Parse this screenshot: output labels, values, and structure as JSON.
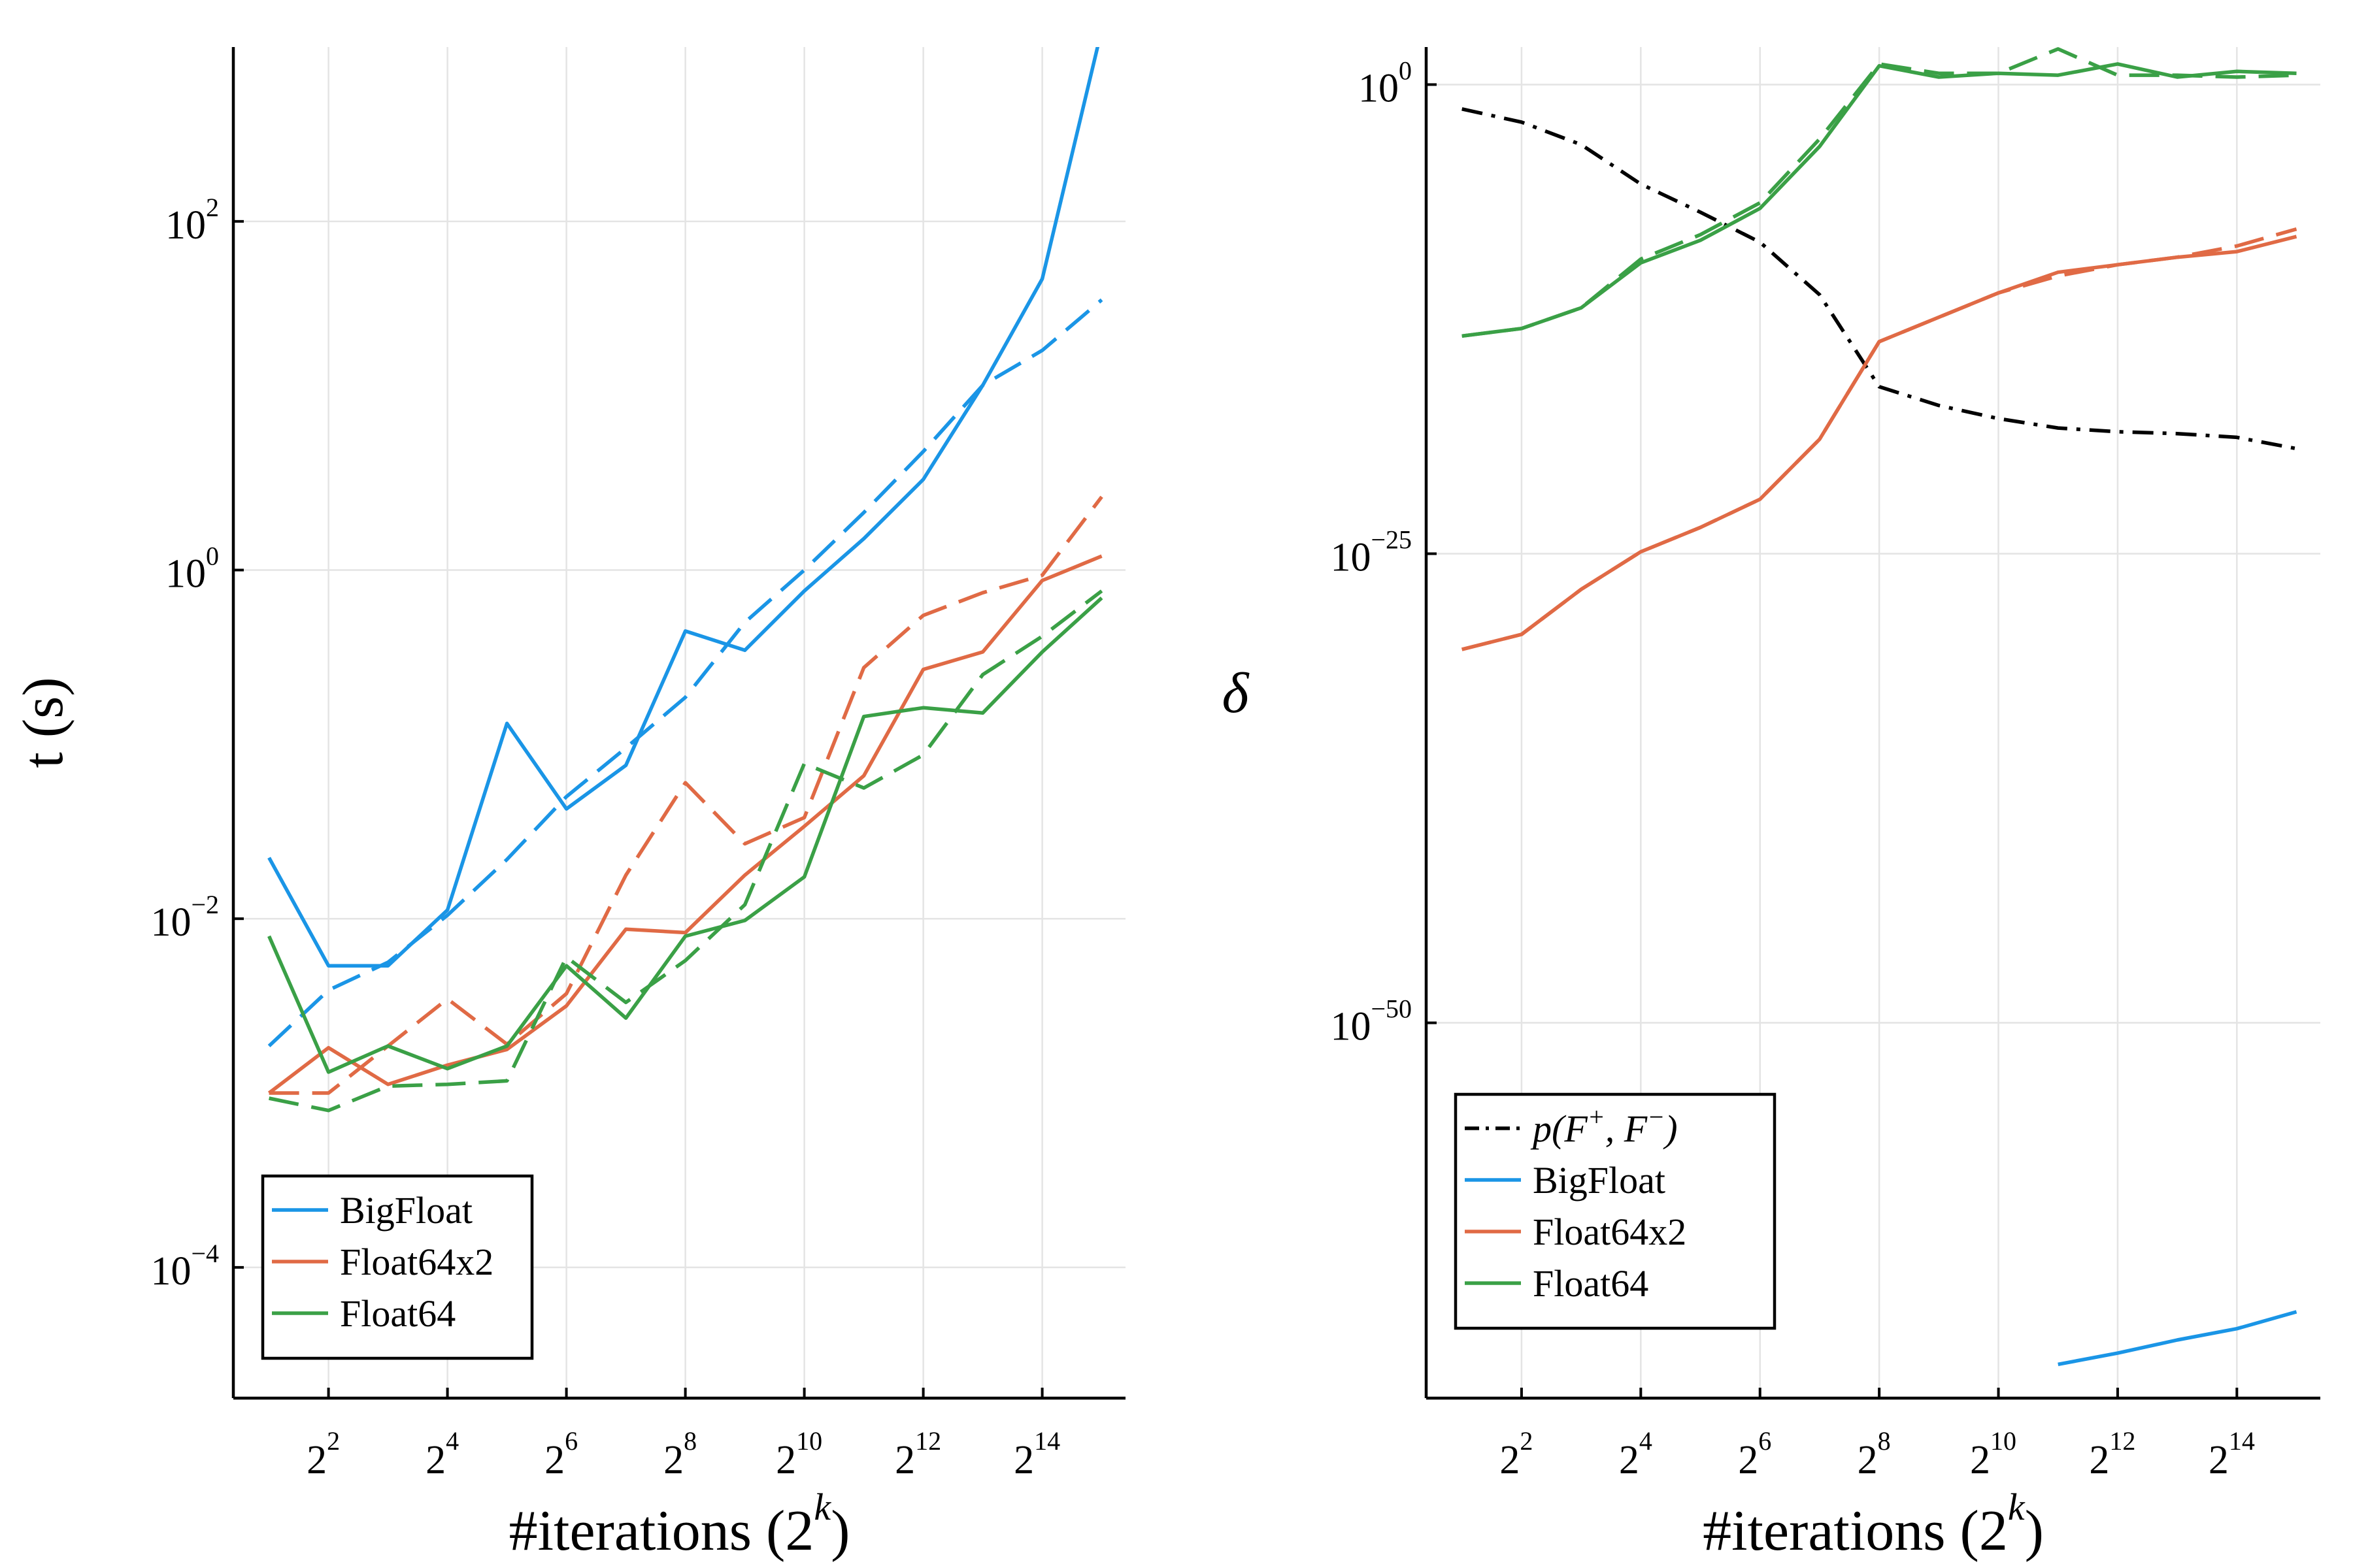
{
  "colors": {
    "BigFloat": "#1a95e6",
    "Float64x2": "#e06a45",
    "Float64": "#3aa046",
    "ratio": "#000000"
  },
  "chart_data": [
    {
      "type": "line",
      "xlabel": "#iterations (2",
      "xlabel_sup": "k",
      "xlabel_close": ")",
      "ylabel": "t (s)",
      "x": [
        1,
        2,
        3,
        4,
        5,
        6,
        7,
        8,
        9,
        10,
        11,
        12,
        13,
        14,
        15
      ],
      "x_ticks": [
        {
          "base": "2",
          "exp": "2",
          "k": 2
        },
        {
          "base": "2",
          "exp": "4",
          "k": 4
        },
        {
          "base": "2",
          "exp": "6",
          "k": 6
        },
        {
          "base": "2",
          "exp": "8",
          "k": 8
        },
        {
          "base": "2",
          "exp": "10",
          "k": 10
        },
        {
          "base": "2",
          "exp": "12",
          "k": 12
        },
        {
          "base": "2",
          "exp": "14",
          "k": 14
        }
      ],
      "y_ticks": [
        {
          "base": "10",
          "exp": "−4",
          "v": -4
        },
        {
          "base": "10",
          "exp": "−2",
          "v": -2
        },
        {
          "base": "10",
          "exp": "0",
          "v": 0
        },
        {
          "base": "10",
          "exp": "2",
          "v": 2
        }
      ],
      "xlim": [
        0.4,
        15.4
      ],
      "ylim_log10": [
        -4.75,
        3.0
      ],
      "scale_y": "log10",
      "grid": true,
      "legend": "bottom-left",
      "series": [
        {
          "name": "BigFloat",
          "style": "solid",
          "log10_values": [
            -1.65,
            -2.27,
            -2.27,
            -1.95,
            -0.88,
            -1.37,
            -1.12,
            -0.35,
            -0.46,
            -0.12,
            0.18,
            0.52,
            1.06,
            1.67,
            3.1
          ]
        },
        {
          "name": "BigFloat",
          "style": "dashed",
          "log10_values": [
            -2.73,
            -2.41,
            -2.25,
            -1.98,
            -1.66,
            -1.3,
            -1.02,
            -0.73,
            -0.3,
            0.0,
            0.33,
            0.68,
            1.06,
            1.26,
            1.55
          ]
        },
        {
          "name": "Float64x2",
          "style": "solid",
          "log10_values": [
            -3.0,
            -2.74,
            -2.95,
            -2.84,
            -2.75,
            -2.5,
            -2.06,
            -2.08,
            -1.75,
            -1.47,
            -1.18,
            -0.57,
            -0.47,
            -0.06,
            0.08
          ]
        },
        {
          "name": "Float64x2",
          "style": "dashed",
          "log10_values": [
            -3.0,
            -3.0,
            -2.73,
            -2.46,
            -2.72,
            -2.43,
            -1.75,
            -1.22,
            -1.57,
            -1.42,
            -0.56,
            -0.26,
            -0.13,
            -0.03,
            0.42
          ]
        },
        {
          "name": "Float64",
          "style": "solid",
          "log10_values": [
            -2.1,
            -2.88,
            -2.73,
            -2.86,
            -2.73,
            -2.27,
            -2.57,
            -2.1,
            -2.01,
            -1.76,
            -0.84,
            -0.79,
            -0.82,
            -0.47,
            -0.16
          ]
        },
        {
          "name": "Float64",
          "style": "dashed",
          "log10_values": [
            -3.03,
            -3.1,
            -2.96,
            -2.95,
            -2.93,
            -2.22,
            -2.48,
            -2.24,
            -1.92,
            -1.11,
            -1.25,
            -1.06,
            -0.6,
            -0.38,
            -0.12
          ]
        }
      ]
    },
    {
      "type": "line",
      "xlabel": "#iterations (2",
      "xlabel_sup": "k",
      "xlabel_close": ")",
      "ylabel": "δ",
      "x": [
        1,
        2,
        3,
        4,
        5,
        6,
        7,
        8,
        9,
        10,
        11,
        12,
        13,
        14,
        15
      ],
      "x_ticks": [
        {
          "base": "2",
          "exp": "2",
          "k": 2
        },
        {
          "base": "2",
          "exp": "4",
          "k": 4
        },
        {
          "base": "2",
          "exp": "6",
          "k": 6
        },
        {
          "base": "2",
          "exp": "8",
          "k": 8
        },
        {
          "base": "2",
          "exp": "10",
          "k": 10
        },
        {
          "base": "2",
          "exp": "12",
          "k": 12
        },
        {
          "base": "2",
          "exp": "14",
          "k": 14
        }
      ],
      "y_ticks": [
        {
          "base": "10",
          "exp": "−50",
          "v": -50
        },
        {
          "base": "10",
          "exp": "−25",
          "v": -25
        },
        {
          "base": "10",
          "exp": "0",
          "v": 0
        }
      ],
      "xlim": [
        0.4,
        15.4
      ],
      "ylim_log10": [
        -70,
        2
      ],
      "scale_y": "log10",
      "grid": true,
      "legend": "bottom-left",
      "series": [
        {
          "name": "p(F⁺, F⁻)",
          "legend_label": "p(F",
          "legend_sup1": "+",
          "legend_mid": ", F",
          "legend_sup2": "−",
          "legend_close": ")",
          "style": "dashdot",
          "log10_values": [
            -1.3,
            -2.0,
            -3.2,
            -5.3,
            -6.8,
            -8.4,
            -11.2,
            -16.1,
            -17.1,
            -17.8,
            -18.3,
            -18.5,
            -18.6,
            -18.8,
            -19.4
          ]
        },
        {
          "name": "BigFloat",
          "style": "solid",
          "x_start": 11,
          "log10_values": [
            -68.2,
            -67.6,
            -66.9,
            -66.3,
            -65.4
          ]
        },
        {
          "name": "Float64x2",
          "style": "solid",
          "log10_values": [
            -30.1,
            -29.3,
            -26.9,
            -24.9,
            -23.6,
            -22.1,
            -18.9,
            -13.7,
            -12.4,
            -11.1,
            -10.0,
            -9.6,
            -9.2,
            -8.9,
            -8.1
          ]
        },
        {
          "name": "Float64x2",
          "style": "dashed",
          "log10_values": [
            -30.1,
            -29.3,
            -26.9,
            -24.9,
            -23.6,
            -22.1,
            -18.9,
            -13.7,
            -12.4,
            -11.1,
            -10.2,
            -9.6,
            -9.2,
            -8.6,
            -7.7
          ]
        },
        {
          "name": "Float64",
          "style": "solid",
          "log10_values": [
            -13.4,
            -13.0,
            -11.9,
            -9.5,
            -8.3,
            -6.6,
            -3.3,
            1.0,
            0.4,
            0.6,
            0.5,
            1.1,
            0.4,
            0.7,
            0.6
          ]
        },
        {
          "name": "Float64",
          "style": "dashed",
          "log10_values": [
            -13.4,
            -13.0,
            -11.9,
            -9.3,
            -8.0,
            -6.3,
            -2.9,
            1.1,
            0.6,
            0.6,
            1.9,
            0.5,
            0.5,
            0.4,
            0.5
          ]
        }
      ]
    }
  ]
}
